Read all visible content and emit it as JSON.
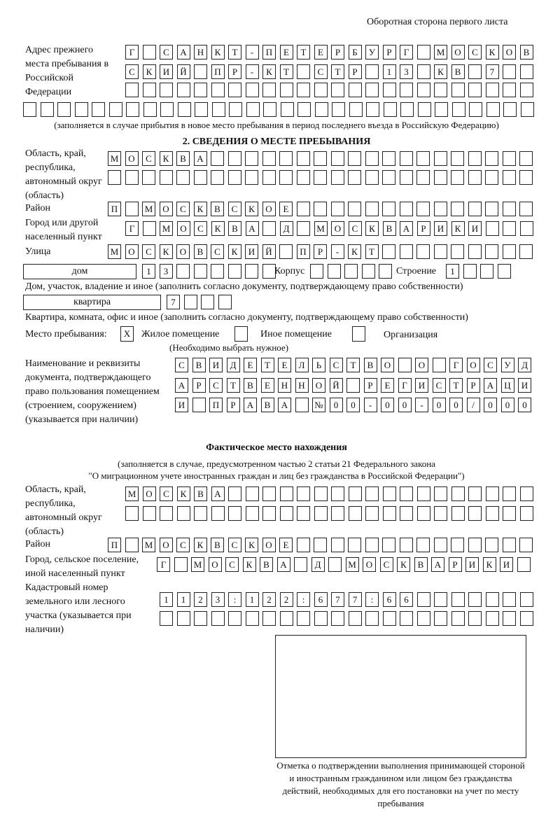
{
  "header": {
    "page_side": "Оборотная сторона первого листа"
  },
  "prev_address": {
    "label": "Адрес прежнего места пребывания в Российской Федерации",
    "rows": [
      "Г САНКТ-ПЕТЕРБУРГ МОСКОВ",
      "СКИЙ ПР-КТ СТР 13 КВ 7  ",
      "                        ",
      "                              "
    ],
    "note": "(заполняется в случае прибытия в новое место пребывания в период последнего въезда в Российскую Федерацию)"
  },
  "section2": {
    "title": "2. СВЕДЕНИЯ О МЕСТЕ ПРЕБЫВАНИЯ",
    "region_label": "Область, край, республика, автономный округ (область)",
    "region_rows": [
      "МОСКВА                   ",
      "                         "
    ],
    "district_label": "Район",
    "district_row": "П МОСКВСКОЕ              ",
    "city_label": "Город или другой населенный пункт",
    "city_row": "Г МОСКВА Д МОСКВАРИКИ   ",
    "street_label": "Улица",
    "street_row": "МОСКОВСКИЙ ПР-КТ         ",
    "house_type": "дом",
    "house_row": "13      ",
    "korpus_label": "Корпус",
    "korpus_row": "     ",
    "building_label": "Строение",
    "building_row": "1   ",
    "house_note": "Дом, участок, владение и иное (заполнить согласно документу, подтверждающему право собственности)",
    "apt_type": "квартира",
    "apt_row": "7   ",
    "apt_note": "Квартира, комната, офис и иное (заполнить согласно документу, подтверждающему право собственности)",
    "place_label": "Место пребывания:",
    "options": [
      {
        "label": "Жилое помещение",
        "mark": "X"
      },
      {
        "label": "Иное помещение",
        "mark": ""
      },
      {
        "label": "Организация",
        "mark": ""
      }
    ],
    "options_note": "(Необходимо выбрать нужное)",
    "doc_label": "Наименование и реквизиты документа, подтверждающего право пользования помещением (строением, сооружением) (указывается при наличии)",
    "doc_rows": [
      "СВИДЕТЕЛЬСТВО О ГОСУД",
      "АРСТВЕННОЙ РЕГИСТРАЦИ",
      "И ПРАВА №00-00-00/000"
    ]
  },
  "actual": {
    "title": "Фактическое место нахождения",
    "note1": "(заполняется в случае, предусмотренном частью 2 статьи 21 Федерального закона",
    "note2": "\"О миграционном учете иностранных граждан и лиц без гражданства в Российской Федерации\")",
    "region_label": "Область, край, республика, автономный округ (область)",
    "region_rows": [
      "МОСКВА                  ",
      "                        "
    ],
    "district_label": "Район",
    "district_row": "П МОСКВСКОЕ              ",
    "city_label": "Город, сельское поселение, иной населенный пункт",
    "city_row": "Г МОСКВА Д МОСКВАРИКИ ",
    "cadastral_label": "Кадастровый номер земельного или лесного участка (указывается при наличии)",
    "cadastral_rows": [
      "1123:122:677:66       ",
      "                      "
    ]
  },
  "stamp": {
    "caption": "Отметка о подтверждении выполнения принимающей стороной и иностранным гражданином или лицом без гражданства действий, необходимых для его постановки на учет по месту пребывания"
  }
}
